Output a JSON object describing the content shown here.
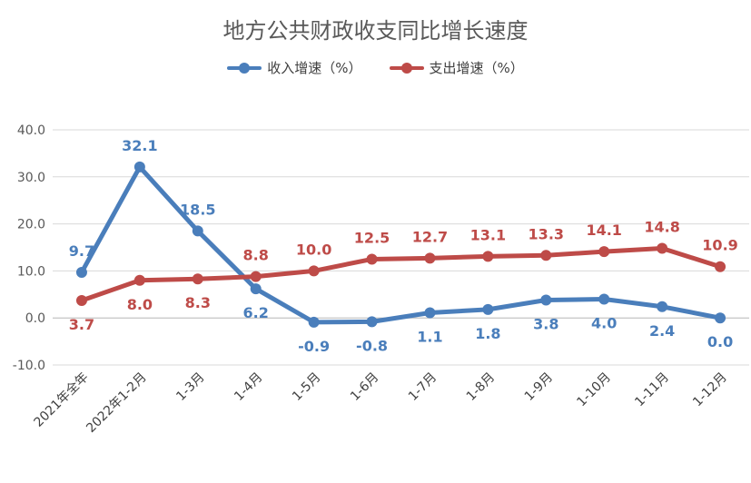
{
  "chart_data": {
    "type": "line",
    "title": "地方公共财政收支同比增长速度",
    "categories": [
      "2021年全年",
      "2022年1-2月",
      "1-3月",
      "1-4月",
      "1-5月",
      "1-6月",
      "1-7月",
      "1-8月",
      "1-9月",
      "1-10月",
      "1-11月",
      "1-12月"
    ],
    "series": [
      {
        "name": "收入增速（%）",
        "color": "#4a7ebb",
        "values": [
          9.7,
          32.1,
          18.5,
          6.2,
          -0.9,
          -0.8,
          1.1,
          1.8,
          3.8,
          4.0,
          2.4,
          0.0
        ],
        "labels": [
          "9.7",
          "32.1",
          "18.5",
          "6.2",
          "-0.9",
          "-0.8",
          "1.1",
          "1.8",
          "3.8",
          "4.0",
          "2.4",
          "0.0"
        ]
      },
      {
        "name": "支出增速（%）",
        "color": "#be4b48",
        "values": [
          3.7,
          8.0,
          8.3,
          8.8,
          10.0,
          12.5,
          12.7,
          13.1,
          13.3,
          14.1,
          14.8,
          10.9
        ],
        "labels": [
          "3.7",
          "8.0",
          "8.3",
          "8.8",
          "10.0",
          "12.5",
          "12.7",
          "13.1",
          "13.3",
          "14.1",
          "14.8",
          "10.9"
        ]
      }
    ],
    "y_ticks": [
      "40.0",
      "30.0",
      "20.0",
      "10.0",
      "0.0",
      "-10.0"
    ],
    "ylim": [
      -10,
      40
    ],
    "grid": true,
    "legend": "top-center"
  }
}
